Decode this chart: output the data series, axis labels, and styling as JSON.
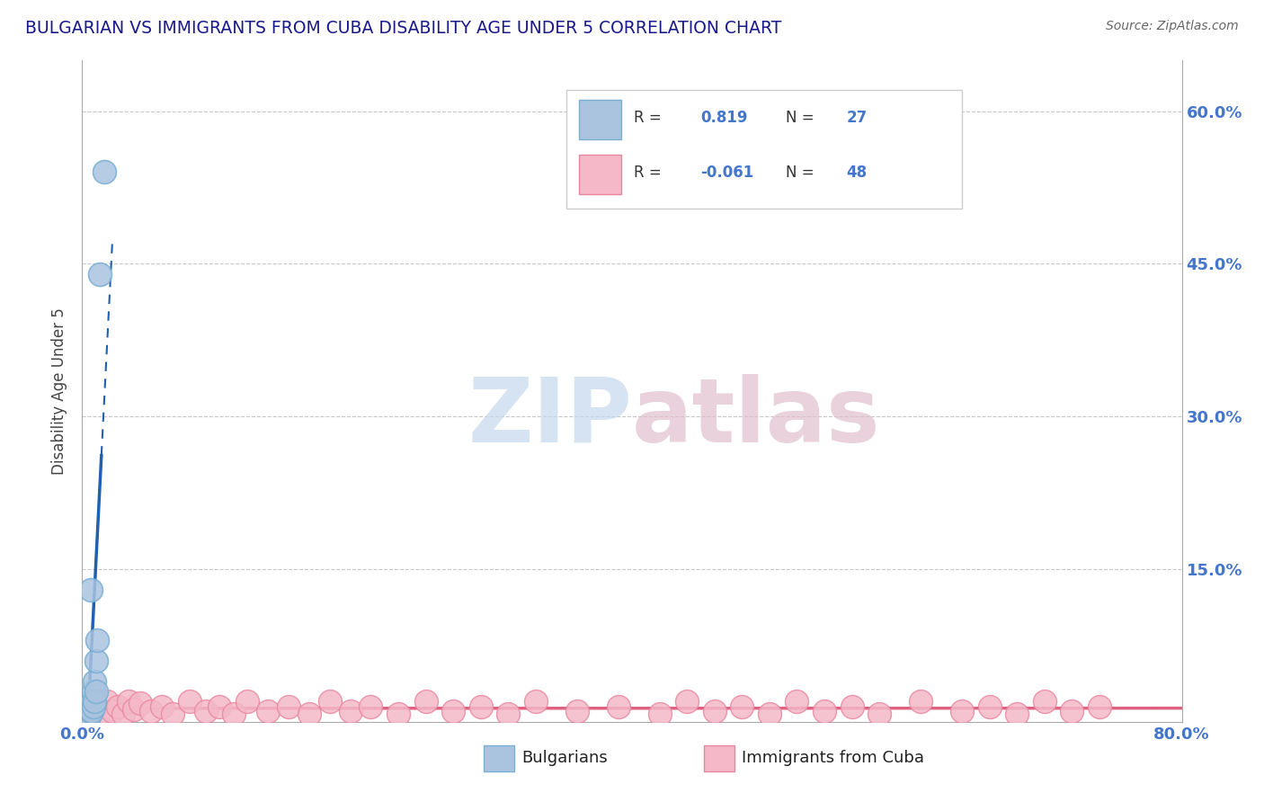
{
  "title": "BULGARIAN VS IMMIGRANTS FROM CUBA DISABILITY AGE UNDER 5 CORRELATION CHART",
  "source": "Source: ZipAtlas.com",
  "ylabel": "Disability Age Under 5",
  "xlim": [
    0.0,
    0.8
  ],
  "ylim": [
    0.0,
    0.65
  ],
  "xtick_labels": [
    "0.0%",
    "80.0%"
  ],
  "ytick_labels": [
    "15.0%",
    "30.0%",
    "45.0%",
    "60.0%"
  ],
  "ytick_vals": [
    0.15,
    0.3,
    0.45,
    0.6
  ],
  "grid_color": "#c8c8c8",
  "background_color": "#ffffff",
  "bulgarians": {
    "scatter_color": "#aac4e0",
    "scatter_edge": "#7aafd4",
    "R": 0.819,
    "N": 27,
    "trendline_color": "#2060b0",
    "scatter_x": [
      0.002,
      0.002,
      0.002,
      0.003,
      0.003,
      0.003,
      0.003,
      0.004,
      0.004,
      0.004,
      0.004,
      0.005,
      0.005,
      0.005,
      0.006,
      0.006,
      0.007,
      0.007,
      0.008,
      0.008,
      0.009,
      0.009,
      0.01,
      0.01,
      0.011,
      0.013,
      0.016
    ],
    "scatter_y": [
      0.005,
      0.01,
      0.005,
      0.005,
      0.01,
      0.015,
      0.005,
      0.005,
      0.01,
      0.015,
      0.005,
      0.01,
      0.015,
      0.005,
      0.13,
      0.01,
      0.02,
      0.01,
      0.03,
      0.015,
      0.04,
      0.02,
      0.06,
      0.03,
      0.08,
      0.44,
      0.54
    ]
  },
  "cuba": {
    "scatter_color": "#f4b8c8",
    "scatter_edge": "#e888a0",
    "R": -0.061,
    "N": 48,
    "trendline_color": "#e06080",
    "scatter_x": [
      0.006,
      0.01,
      0.014,
      0.018,
      0.022,
      0.026,
      0.03,
      0.034,
      0.038,
      0.042,
      0.05,
      0.058,
      0.066,
      0.078,
      0.09,
      0.1,
      0.11,
      0.12,
      0.135,
      0.15,
      0.165,
      0.18,
      0.195,
      0.21,
      0.23,
      0.25,
      0.27,
      0.29,
      0.31,
      0.33,
      0.36,
      0.39,
      0.42,
      0.44,
      0.46,
      0.48,
      0.5,
      0.52,
      0.54,
      0.56,
      0.58,
      0.61,
      0.64,
      0.66,
      0.68,
      0.7,
      0.72,
      0.74
    ],
    "scatter_y": [
      0.01,
      0.015,
      0.008,
      0.02,
      0.01,
      0.015,
      0.008,
      0.02,
      0.012,
      0.018,
      0.01,
      0.015,
      0.008,
      0.02,
      0.01,
      0.015,
      0.008,
      0.02,
      0.01,
      0.015,
      0.008,
      0.02,
      0.01,
      0.015,
      0.008,
      0.02,
      0.01,
      0.015,
      0.008,
      0.02,
      0.01,
      0.015,
      0.008,
      0.02,
      0.01,
      0.015,
      0.008,
      0.02,
      0.01,
      0.015,
      0.008,
      0.02,
      0.01,
      0.015,
      0.008,
      0.02,
      0.01,
      0.015
    ]
  },
  "title_color": "#1a1a8c",
  "source_color": "#666666",
  "ylabel_color": "#444444",
  "tick_color": "#4477cc",
  "legend_R1": "0.819",
  "legend_N1": "27",
  "legend_R2": "-0.061",
  "legend_N2": "48",
  "watermark_zip_color": "#c5d8ee",
  "watermark_atlas_color": "#e0c0cc"
}
